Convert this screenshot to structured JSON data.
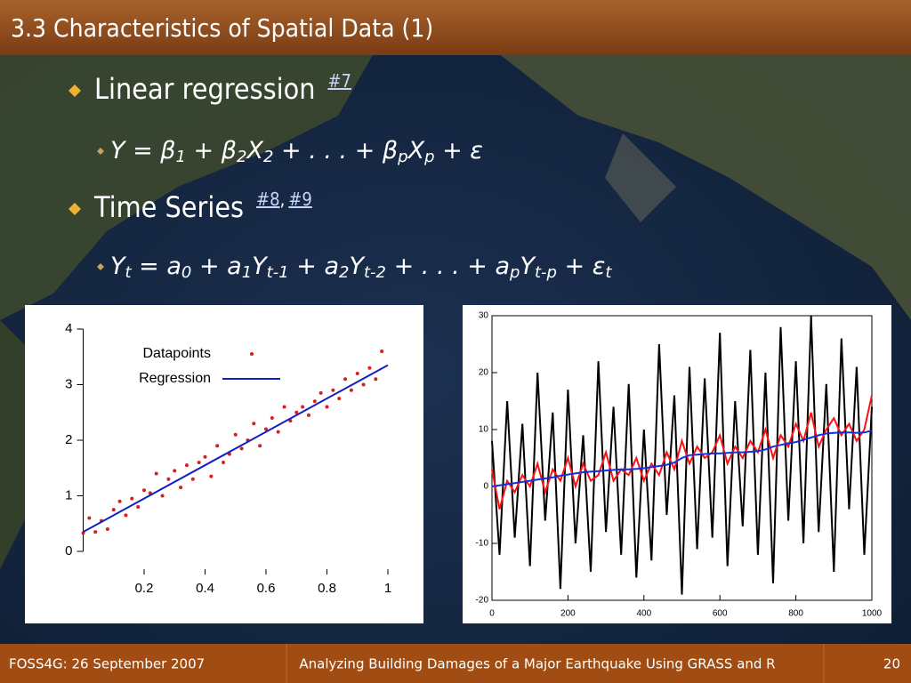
{
  "header": {
    "title": "3.3 Characteristics of Spatial Data (1)"
  },
  "bullets": [
    {
      "text": "Linear regression",
      "links": [
        "#7"
      ],
      "equation": [
        "Y = β",
        "1",
        " + β",
        "2",
        "X",
        "2",
        " + . . . + β",
        "p",
        "X",
        "p",
        " + ε"
      ]
    },
    {
      "text": "Time Series",
      "links": [
        "#8",
        "#9"
      ],
      "separator": ",",
      "equation": [
        "Y",
        "t",
        " = a",
        "0",
        " + a",
        "1",
        "Y",
        "t-1",
        " + a",
        "2",
        "Y",
        "t-2",
        " + . . . + a",
        "p",
        "Y",
        "t-p",
        " + ε",
        "t"
      ]
    }
  ],
  "chart_data": [
    {
      "type": "scatter",
      "xlim": [
        0,
        1
      ],
      "ylim": [
        0,
        4
      ],
      "xticks": [
        0.2,
        0.4,
        0.6,
        0.8,
        1
      ],
      "yticks": [
        0,
        1,
        2,
        3,
        4
      ],
      "series": [
        {
          "name": "Datapoints",
          "type": "scatter",
          "color": "#d42020",
          "x": [
            0,
            0.02,
            0.04,
            0.06,
            0.08,
            0.1,
            0.12,
            0.14,
            0.16,
            0.18,
            0.2,
            0.22,
            0.24,
            0.26,
            0.28,
            0.3,
            0.32,
            0.34,
            0.36,
            0.38,
            0.4,
            0.42,
            0.44,
            0.46,
            0.48,
            0.5,
            0.52,
            0.54,
            0.56,
            0.58,
            0.6,
            0.62,
            0.64,
            0.66,
            0.68,
            0.7,
            0.72,
            0.74,
            0.76,
            0.78,
            0.8,
            0.82,
            0.84,
            0.86,
            0.88,
            0.9,
            0.92,
            0.94,
            0.96,
            0.98
          ],
          "values": [
            0.33,
            0.6,
            0.35,
            0.55,
            0.4,
            0.75,
            0.9,
            0.65,
            0.95,
            0.8,
            1.1,
            1.05,
            1.4,
            1.0,
            1.3,
            1.45,
            1.15,
            1.55,
            1.3,
            1.6,
            1.7,
            1.35,
            1.9,
            1.6,
            1.75,
            2.1,
            1.85,
            2.0,
            2.3,
            1.9,
            2.2,
            2.4,
            2.15,
            2.6,
            2.35,
            2.5,
            2.6,
            2.45,
            2.7,
            2.85,
            2.6,
            2.9,
            2.75,
            3.1,
            2.9,
            3.2,
            3.0,
            3.3,
            3.1,
            3.6
          ]
        },
        {
          "name": "Regression",
          "type": "line",
          "color": "#1020c0",
          "x": [
            0,
            1
          ],
          "values": [
            0.35,
            3.35
          ]
        }
      ]
    },
    {
      "type": "line",
      "xlim": [
        0,
        1000
      ],
      "ylim": [
        -20,
        30
      ],
      "xticks": [
        0,
        200,
        400,
        600,
        800,
        1000
      ],
      "yticks": [
        -20,
        -10,
        0,
        10,
        20,
        30
      ],
      "x": [
        0,
        20,
        40,
        60,
        80,
        100,
        120,
        140,
        160,
        180,
        200,
        220,
        240,
        260,
        280,
        300,
        320,
        340,
        360,
        380,
        400,
        420,
        440,
        460,
        480,
        500,
        520,
        540,
        560,
        580,
        600,
        620,
        640,
        660,
        680,
        700,
        720,
        740,
        760,
        780,
        800,
        820,
        840,
        860,
        880,
        900,
        920,
        940,
        960,
        980,
        1000
      ],
      "series": [
        {
          "color": "#000000",
          "values": [
            8,
            -12,
            15,
            -9,
            11,
            -14,
            20,
            -6,
            13,
            -18,
            17,
            -10,
            9,
            -15,
            22,
            -8,
            14,
            -12,
            18,
            -16,
            10,
            -13,
            25,
            -5,
            16,
            -19,
            21,
            -11,
            19,
            -9,
            27,
            -14,
            15,
            -7,
            24,
            -12,
            20,
            -17,
            28,
            -6,
            22,
            -10,
            30,
            -8,
            18,
            -15,
            26,
            -4,
            21,
            -12,
            14
          ]
        },
        {
          "color": "#ff1010",
          "values": [
            3,
            -4,
            1,
            -1,
            2,
            0,
            4,
            -1,
            3,
            1,
            5,
            0,
            4,
            1,
            2,
            6,
            1,
            3,
            2,
            5,
            1,
            4,
            2,
            6,
            3,
            8,
            4,
            7,
            5,
            6,
            9,
            4,
            7,
            5,
            8,
            6,
            10,
            5,
            9,
            7,
            11,
            8,
            13,
            7,
            10,
            12,
            9,
            11,
            8,
            10,
            16
          ]
        },
        {
          "color": "#1030e0",
          "values": [
            0,
            0.2,
            0.4,
            0.6,
            0.8,
            1,
            1.2,
            1.4,
            1.6,
            1.9,
            2.1,
            2.3,
            2.5,
            2.6,
            2.7,
            2.8,
            2.9,
            3,
            3,
            3.1,
            3.2,
            3.4,
            3.6,
            3.8,
            4.2,
            5,
            5.5,
            5.6,
            5.7,
            5.8,
            5.8,
            5.9,
            6,
            6,
            6.1,
            6.2,
            6.5,
            7,
            7.3,
            7.6,
            7.8,
            8.2,
            8.6,
            9,
            9.3,
            9.4,
            9.5,
            9.5,
            9.4,
            9.5,
            9.8
          ]
        }
      ]
    }
  ],
  "footer": {
    "left": "FOSS4G: 26 September 2007",
    "center": "Analyzing Building Damages of a Major Earthquake Using GRASS and R",
    "page": "20"
  }
}
